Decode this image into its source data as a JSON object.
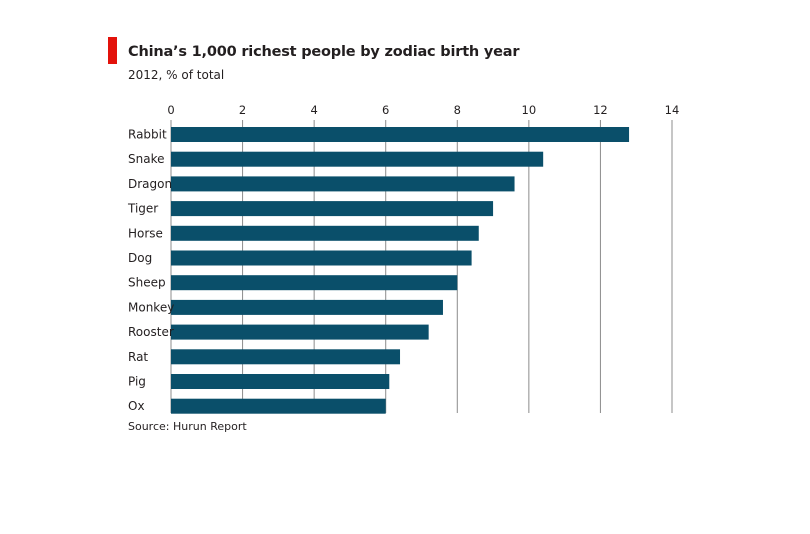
{
  "title": "China’s 1,000 richest people by zodiac birth year",
  "subtitle": "2012, % of total",
  "source": "Source: Hurun Report",
  "colors": {
    "bar": "#0a4f6a",
    "accent": "#e3120b",
    "grid": "#8c8c8c"
  },
  "chart_data": {
    "type": "bar",
    "orientation": "horizontal",
    "title": "China’s 1,000 richest people by zodiac birth year",
    "subtitle": "2012, % of total",
    "categories": [
      "Rabbit",
      "Snake",
      "Dragon",
      "Tiger",
      "Horse",
      "Dog",
      "Sheep",
      "Monkey",
      "Rooster",
      "Rat",
      "Pig",
      "Ox"
    ],
    "values": [
      12.8,
      10.4,
      9.6,
      9.0,
      8.6,
      8.4,
      8.0,
      7.6,
      7.2,
      6.4,
      6.1,
      6.0
    ],
    "xlim": [
      0,
      14
    ],
    "xticks": [
      "0",
      "2",
      "4",
      "6",
      "8",
      "10",
      "12",
      "14"
    ],
    "grid": true,
    "axis_position": "top",
    "xlabel": "",
    "ylabel": ""
  }
}
